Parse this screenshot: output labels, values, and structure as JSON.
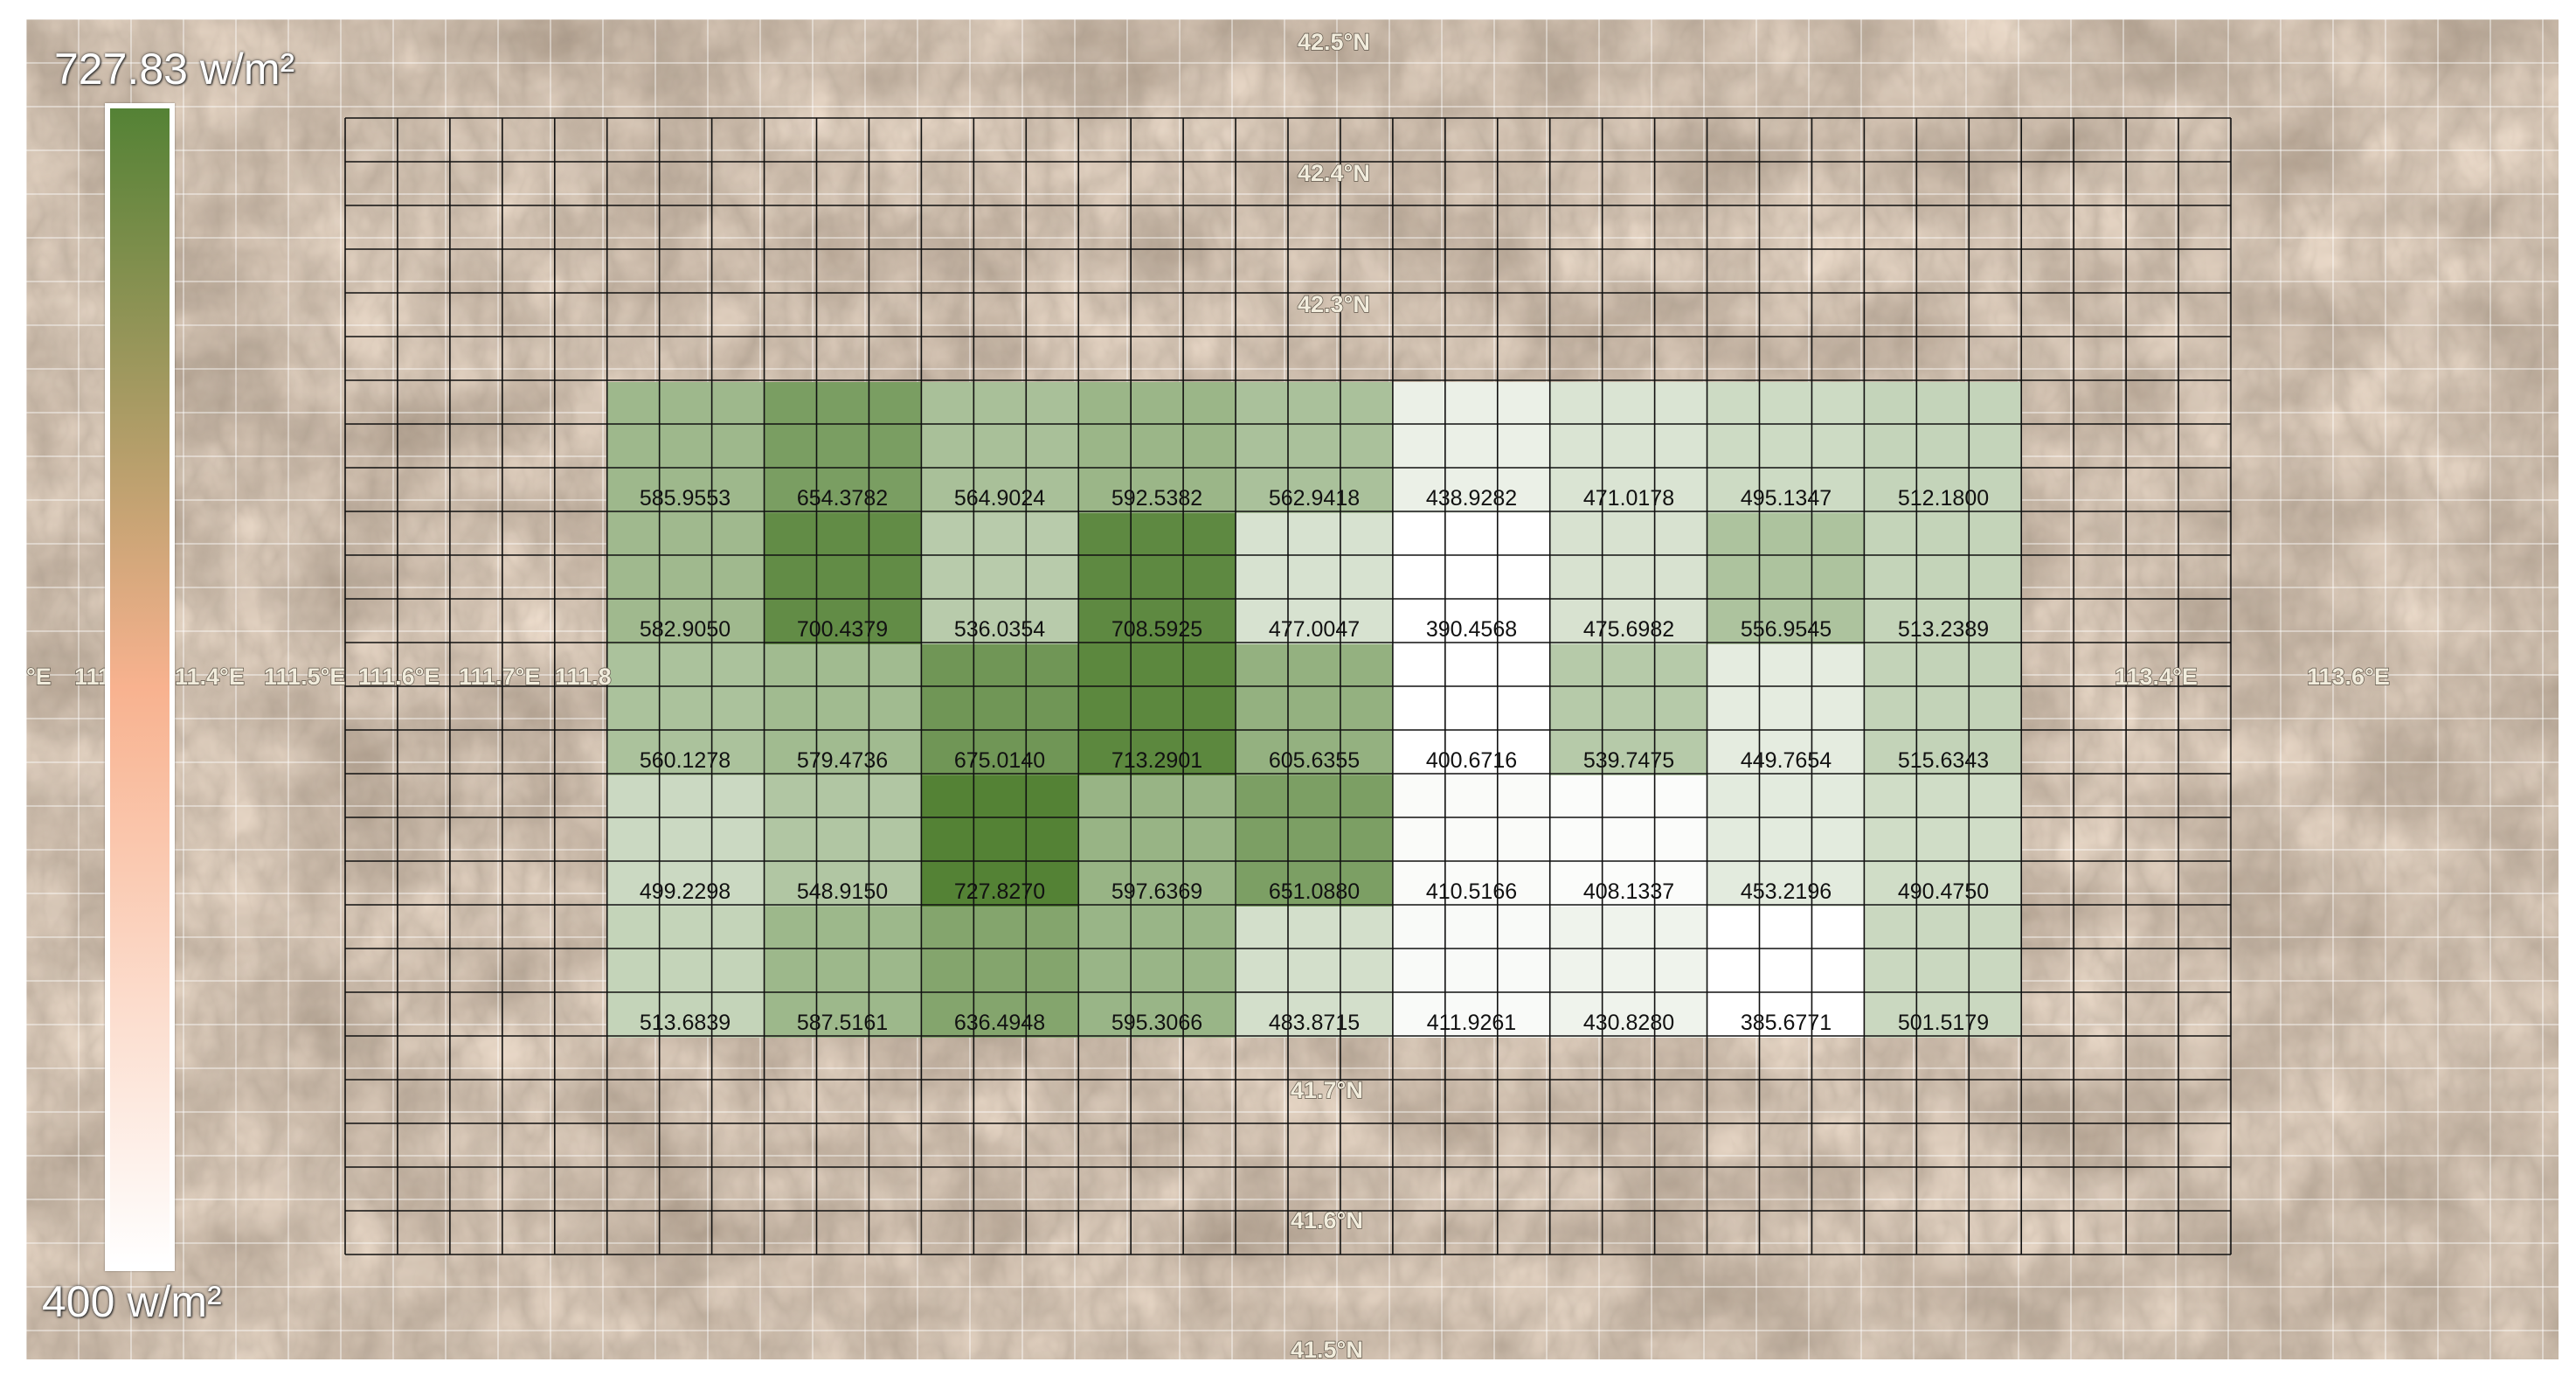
{
  "map": {
    "basemap": "satellite-terrain",
    "latitude_labels": [
      {
        "text": "42.5°N"
      },
      {
        "text": "42.4°N"
      },
      {
        "text": "42.3°N"
      },
      {
        "text": "41.7°N"
      },
      {
        "text": "41.6°N"
      },
      {
        "text": "41.5°N"
      }
    ],
    "longitude_labels": [
      {
        "text": "°E"
      },
      {
        "text": "111"
      },
      {
        "text": "11.4°E"
      },
      {
        "text": "111.5°E"
      },
      {
        "text": "111.6°E"
      },
      {
        "text": "111.7°E"
      },
      {
        "text": "111.8"
      },
      {
        "text": "113.4°E"
      },
      {
        "text": "113.6°E"
      }
    ]
  },
  "legend": {
    "max_label": "727.83 w/m²",
    "min_label": "400 w/m²",
    "max_value": 727.83,
    "min_value": 400,
    "color_high": "#548235",
    "color_mid": "#f8b28f",
    "color_low": "#ffffff"
  },
  "heatmap": {
    "rows": 5,
    "cols": 9,
    "cell_color_high": "#548235",
    "cell_color_low": "#ffffff",
    "cells": [
      [
        "585.9553",
        "654.3782",
        "564.9024",
        "592.5382",
        "562.9418",
        "438.9282",
        "471.0178",
        "495.1347",
        "512.1800"
      ],
      [
        "582.9050",
        "700.4379",
        "536.0354",
        "708.5925",
        "477.0047",
        "390.4568",
        "475.6982",
        "556.9545",
        "513.2389"
      ],
      [
        "560.1278",
        "579.4736",
        "675.0140",
        "713.2901",
        "605.6355",
        "400.6716",
        "539.7475",
        "449.7654",
        "515.6343"
      ],
      [
        "499.2298",
        "548.9150",
        "727.8270",
        "597.6369",
        "651.0880",
        "410.5166",
        "408.1337",
        "453.2196",
        "490.4750"
      ],
      [
        "513.6839",
        "587.5161",
        "636.4948",
        "595.3066",
        "483.8715",
        "411.9261",
        "430.8280",
        "385.6771",
        "501.5179"
      ]
    ]
  }
}
